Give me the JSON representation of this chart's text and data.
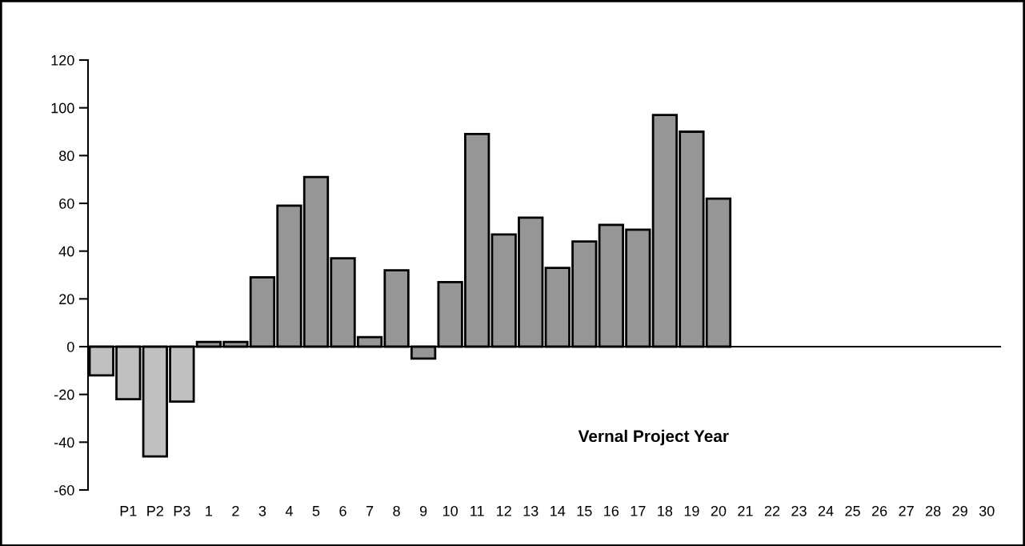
{
  "chart_data": {
    "type": "bar",
    "xlabel": "Vernal Project Year",
    "categories": [
      null,
      "P1",
      "P2",
      "P3",
      "1",
      "2",
      "3",
      "4",
      "5",
      "6",
      "7",
      "8",
      "9",
      "10",
      "11",
      "12",
      "13",
      "14",
      "15",
      "16",
      "17",
      "18",
      "19",
      "20",
      "21",
      "22",
      "23",
      "24",
      "25",
      "26",
      "27",
      "28",
      "29",
      "30"
    ],
    "values": [
      -12,
      -22,
      -46,
      -23,
      2,
      2,
      29,
      59,
      71,
      37,
      4,
      32,
      -5,
      27,
      89,
      47,
      54,
      33,
      44,
      51,
      49,
      97,
      90,
      62,
      null,
      null,
      null,
      null,
      null,
      null,
      null,
      null,
      null,
      null
    ],
    "colors": [
      "#c0c0c0",
      "#c0c0c0",
      "#c0c0c0",
      "#c0c0c0",
      "#969696",
      "#969696",
      "#969696",
      "#969696",
      "#969696",
      "#969696",
      "#969696",
      "#969696",
      "#969696",
      "#969696",
      "#969696",
      "#969696",
      "#969696",
      "#969696",
      "#969696",
      "#969696",
      "#969696",
      "#969696",
      "#969696",
      "#969696",
      "#969696",
      "#969696",
      "#969696",
      "#969696",
      "#969696",
      "#969696",
      "#969696",
      "#969696",
      "#969696",
      "#969696"
    ],
    "ylim": [
      -60,
      120
    ],
    "yticks": [
      -60,
      -40,
      -20,
      0,
      20,
      40,
      60,
      80,
      100,
      120
    ]
  }
}
